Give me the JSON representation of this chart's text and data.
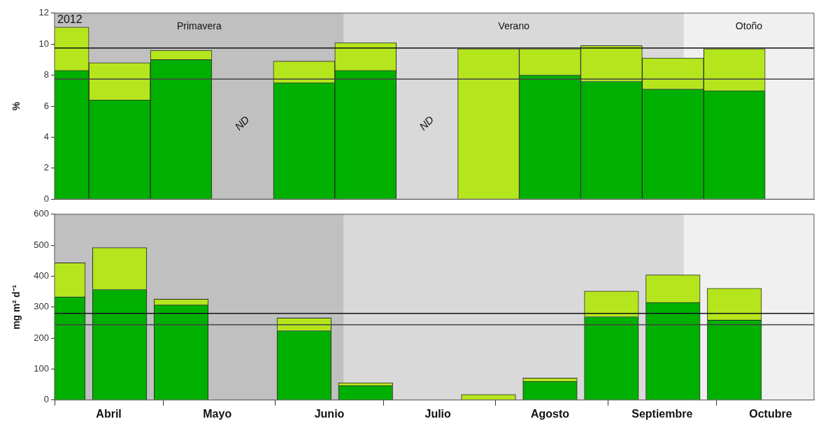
{
  "chart_data": [
    {
      "type": "bar",
      "ylabel": "%",
      "stacked": true,
      "tick_labels": "y",
      "x": [
        "--04-02",
        "--04-19",
        "--05-06",
        "--05-23",
        "--06-09",
        "--06-26",
        "--07-13",
        "--07-30",
        "--08-16",
        "--09-02",
        "--09-19",
        "--10-06"
      ],
      "series": [
        {
          "color": "#00b000",
          "values": [
            8.3,
            6.4,
            9.0,
            null,
            7.5,
            8.3,
            null,
            0,
            8.0,
            7.6,
            7.1,
            7.0
          ]
        },
        {
          "color": "#b5e61d",
          "values": [
            2.8,
            2.4,
            0.6,
            null,
            1.4,
            1.8,
            null,
            9.7,
            1.7,
            2.3,
            2.0,
            2.7
          ]
        }
      ],
      "xlim": [
        "--04-01",
        "--10-28"
      ],
      "ylim": [
        0,
        12
      ],
      "yticks": [
        0,
        2,
        4,
        6,
        8,
        10,
        12
      ],
      "bands": [
        {
          "axis": "x",
          "from": "--04-01",
          "to": "--06-20",
          "label": "Primavera",
          "color": "#c0c0c0"
        },
        {
          "axis": "x",
          "from": "--06-20",
          "to": "--09-22",
          "label": "Verano",
          "color": "#d9d9d9"
        },
        {
          "axis": "x",
          "from": "--09-22",
          "to": "--10-28",
          "label": "Otoño",
          "color": "#f0f0f0"
        }
      ],
      "ref_lines": [
        {
          "axis": "y",
          "value": 9.75,
          "color": "#111111"
        },
        {
          "axis": "y",
          "value": 7.75,
          "color": "#444444"
        }
      ],
      "annotations": [
        "2012",
        "ND",
        "ND"
      ]
    },
    {
      "type": "bar",
      "ylabel": "mg m² d⁻¹",
      "stacked": true,
      "x": [
        "--04-02",
        "--04-19",
        "--05-06",
        "--05-23",
        "--06-09",
        "--06-26",
        "--07-13",
        "--07-30",
        "--08-16",
        "--09-02",
        "--09-19",
        "--10-06"
      ],
      "series": [
        {
          "color": "#00b000",
          "values": [
            333,
            357,
            307,
            null,
            224,
            47,
            null,
            0,
            60,
            269,
            315,
            258
          ]
        },
        {
          "color": "#b5e61d",
          "values": [
            110,
            135,
            19,
            null,
            41,
            9,
            null,
            18,
            11,
            83,
            89,
            103
          ]
        }
      ],
      "xlim": [
        "--04-01",
        "--10-28"
      ],
      "ylim": [
        0,
        600
      ],
      "yticks": [
        0,
        100,
        200,
        300,
        400,
        500,
        600
      ],
      "xticks": [
        {
          "value": "--04-01",
          "label": null
        },
        {
          "value": "--04-16",
          "label": "Abril"
        },
        {
          "value": "--05-01",
          "label": null
        },
        {
          "value": "--05-16",
          "label": "Mayo"
        },
        {
          "value": "--06-01",
          "label": null
        },
        {
          "value": "--06-16",
          "label": "Junio"
        },
        {
          "value": "--07-01",
          "label": null
        },
        {
          "value": "--07-16",
          "label": "Julio"
        },
        {
          "value": "--08-01",
          "label": null
        },
        {
          "value": "--08-16",
          "label": "Agosto"
        },
        {
          "value": "--09-01",
          "label": null
        },
        {
          "value": "--09-16",
          "label": "Septiembre"
        },
        {
          "value": "--10-01",
          "label": null
        },
        {
          "value": "--10-16",
          "label": "Octubre"
        }
      ],
      "bands": [
        {
          "axis": "x",
          "from": "--04-01",
          "to": "--06-20",
          "color": "#c0c0c0"
        },
        {
          "axis": "x",
          "from": "--06-20",
          "to": "--09-22",
          "color": "#d9d9d9"
        },
        {
          "axis": "x",
          "from": "--09-22",
          "to": "--10-28",
          "color": "#f0f0f0"
        }
      ],
      "ref_lines": [
        {
          "axis": "y",
          "value": 280,
          "color": "#111111"
        },
        {
          "axis": "y",
          "value": 243,
          "color": "#444444"
        }
      ]
    }
  ]
}
